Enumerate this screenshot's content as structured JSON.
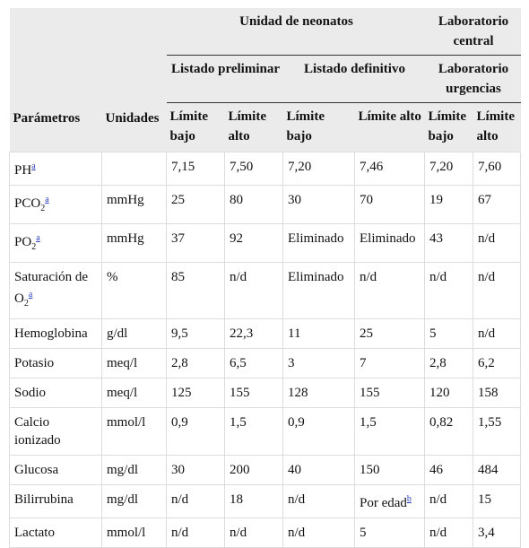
{
  "table": {
    "header": {
      "group1": "Unidad de neonatos",
      "group2": "Laboratorio central",
      "sub1": "Listado preliminar",
      "sub2": "Listado definitivo",
      "sub3": "Laboratorio urgencias",
      "param": "Parámetros",
      "units": "Unidades",
      "limits": [
        "Límite bajo",
        "Límite alto",
        "Límite bajo",
        "Límite alto",
        "Límite bajo",
        "Límite alto"
      ]
    },
    "rows": [
      [
        {
          "text": "PH",
          "note": "a"
        },
        null,
        "7,15",
        "7,50",
        "7,20",
        "7,46",
        "7,20",
        "7,60"
      ],
      [
        {
          "text": "PCO",
          "sub": "2",
          "note": "a"
        },
        "mmHg",
        "25",
        "80",
        "30",
        "70",
        "19",
        "67"
      ],
      [
        {
          "text": "PO",
          "sub": "2",
          "note": "a"
        },
        "mmHg",
        "37",
        "92",
        "Eliminado",
        "Eliminado",
        "43",
        "n/d"
      ],
      [
        {
          "text": "Saturación de O",
          "sub": "2",
          "note": "a"
        },
        "%",
        "85",
        "n/d",
        "Eliminado",
        "n/d",
        "n/d",
        "n/d"
      ],
      [
        "Hemoglobina",
        "g/dl",
        "9,5",
        "22,3",
        "11",
        "25",
        "5",
        "n/d"
      ],
      [
        "Potasio",
        "meq/l",
        "2,8",
        "6,5",
        "3",
        "7",
        "2,8",
        "6,2"
      ],
      [
        "Sodio",
        "meq/l",
        "125",
        "155",
        "128",
        "155",
        "120",
        "158"
      ],
      [
        "Calcio ionizado",
        "mmol/l",
        "0,9",
        "1,5",
        "0,9",
        "1,5",
        "0,82",
        "1,55"
      ],
      [
        "Glucosa",
        "mg/dl",
        "30",
        "200",
        "40",
        "150",
        "46",
        "484"
      ],
      [
        "Bilirrubina",
        "mg/dl",
        "n/d",
        "18",
        "n/d",
        {
          "text": "Por edad",
          "note": "b"
        },
        "n/d",
        "15"
      ],
      [
        "Lactato",
        "mmol/l",
        "n/d",
        "n/d",
        "n/d",
        "5",
        "n/d",
        "3,4"
      ]
    ]
  }
}
